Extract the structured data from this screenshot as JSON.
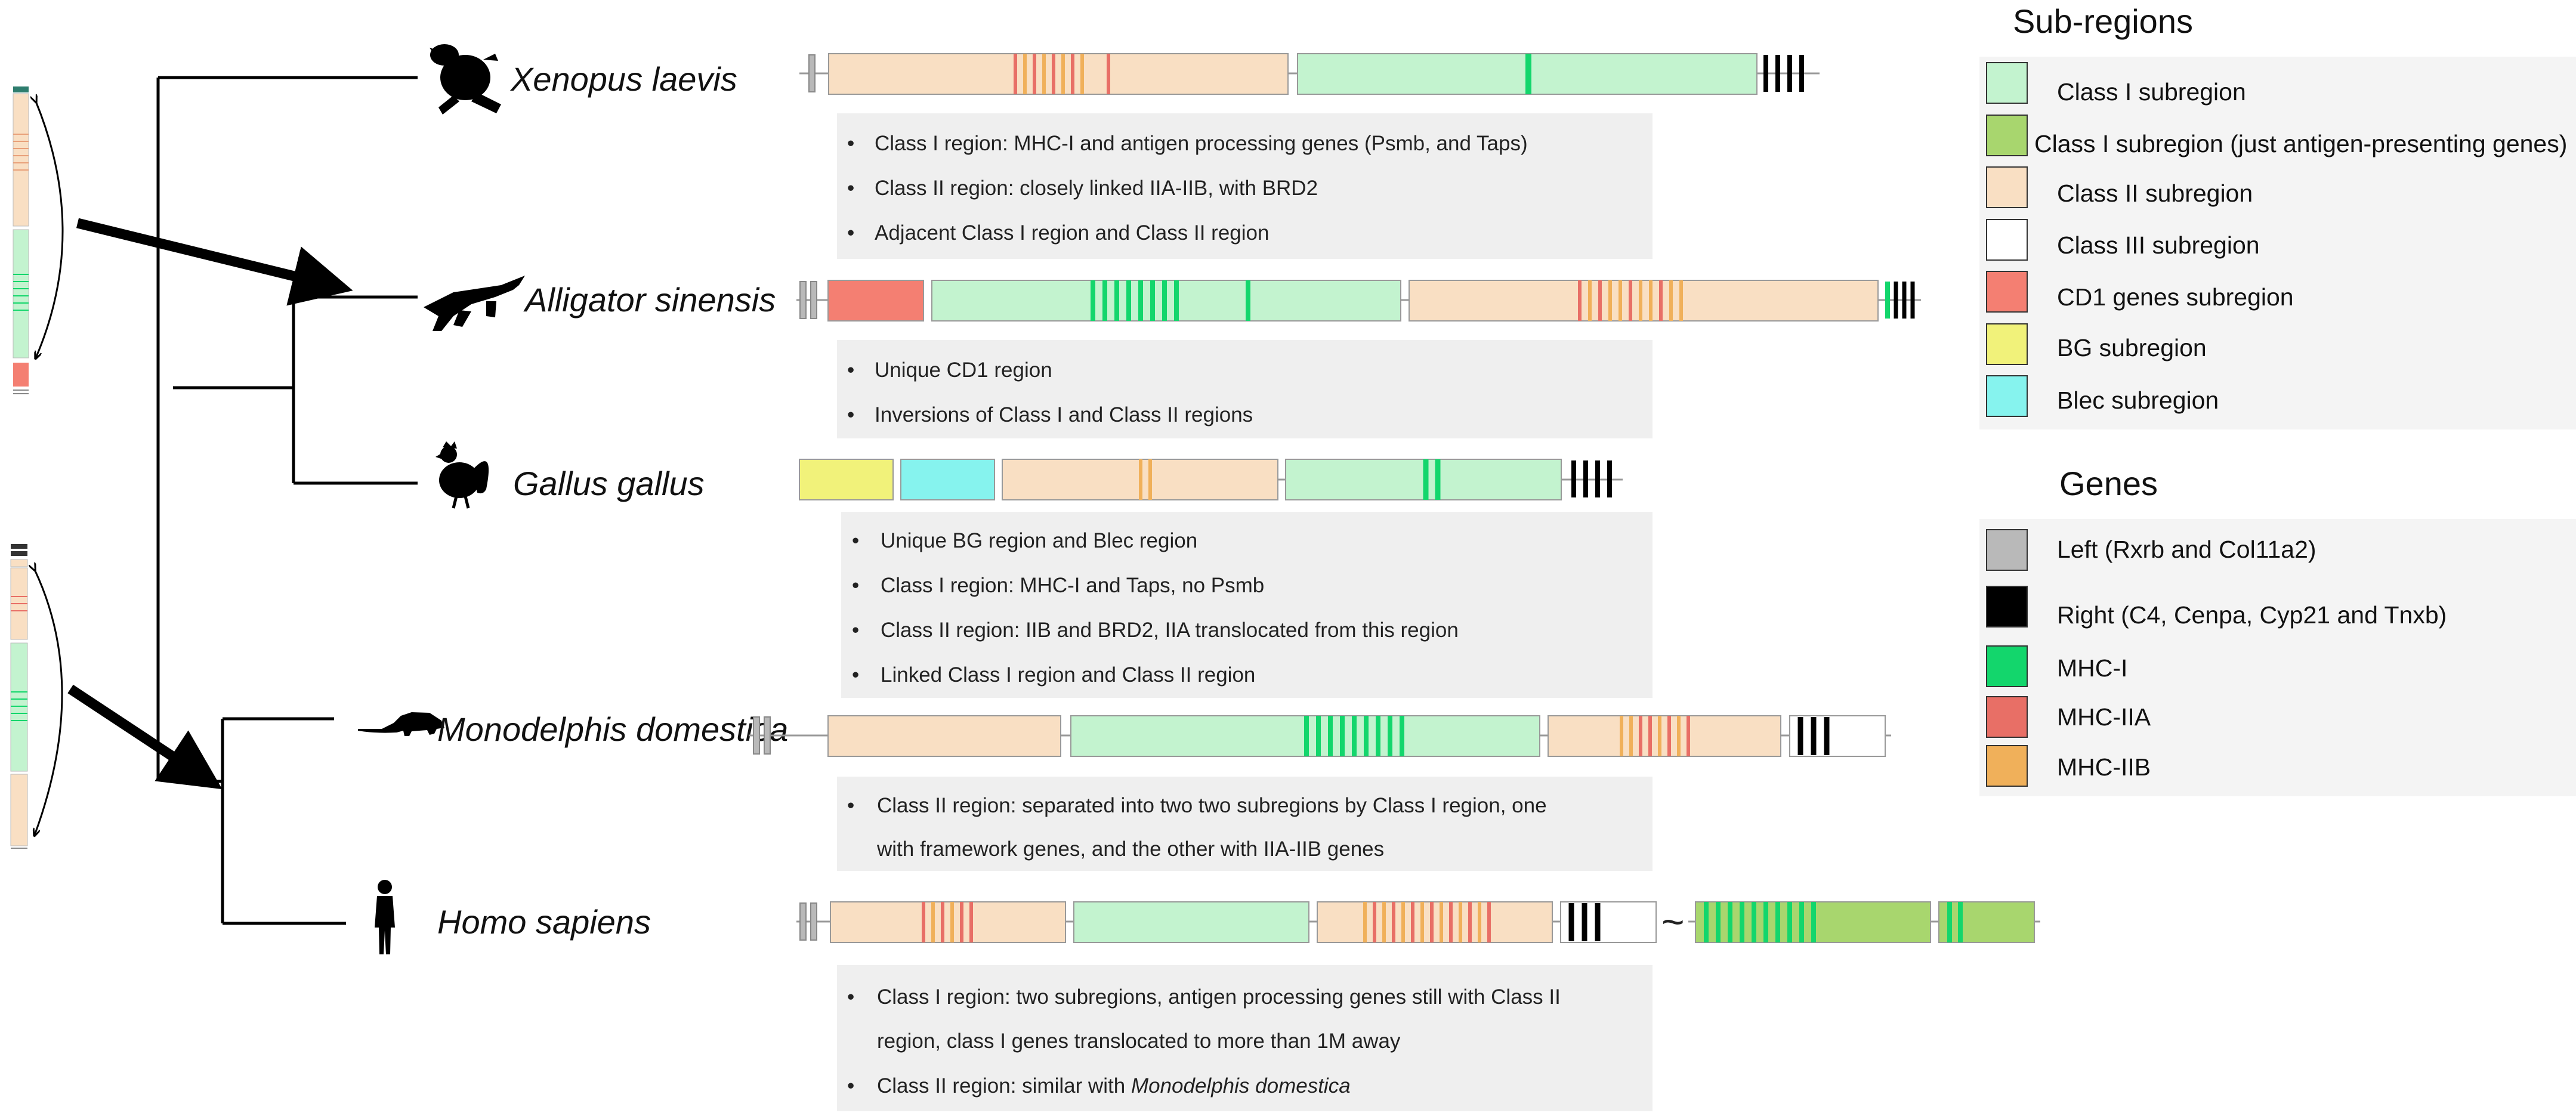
{
  "colors": {
    "class1": "#c3f3cf",
    "class1_ap": "#a8d66e",
    "class2": "#f9dfc3",
    "class3": "#ffffff",
    "cd1": "#f47f72",
    "bg": "#f1f27a",
    "blec": "#86f3ee",
    "left": "#b9b9b9",
    "right": "#000000",
    "mhc1": "#13d66c",
    "mhc2a": "#e86f66",
    "mhc2b": "#f0b05a",
    "note_bg": "#efefef"
  },
  "species": [
    {
      "name": "Xenopus laevis",
      "icon": "frog-silhouette-icon",
      "notes": [
        "Class I region:  MHC-I and antigen processing genes (Psmb, and Taps)",
        "Class II region:  closely linked IIA-IIB,  with BRD2",
        "Adjacent  Class I region and Class II region"
      ]
    },
    {
      "name": "Alligator sinensis",
      "icon": "alligator-silhouette-icon",
      "notes": [
        "Unique CD1 region",
        "Inversions of Class I and Class II regions"
      ]
    },
    {
      "name": "Gallus gallus",
      "icon": "rooster-silhouette-icon",
      "notes": [
        "Unique BG region and Blec region",
        "Class I region: MHC-I  and Taps, no Psmb",
        "Class II region:  IIB and BRD2, IIA translocated from this region",
        "Linked Class I region and Class II region"
      ]
    },
    {
      "name": "Monodelphis domestica",
      "icon": "opossum-silhouette-icon",
      "notes": [
        "Class II region: separated into two two subregions by Class I region, one",
        "with framework genes, and the other with IIA-IIB genes"
      ]
    },
    {
      "name": "Homo sapiens",
      "icon": "human-silhouette-icon",
      "notes": [
        "Class I region:  two subregions, antigen processing genes  still with Class II",
        "region, class I genes translocated to more than 1M away",
        "Class II region: similar with "
      ],
      "note_italic_tail": "Monodelphis domestica"
    }
  ],
  "tilde": "~",
  "legend": {
    "subregions_title": "Sub-regions",
    "subregions": [
      {
        "label": "Class I  subregion",
        "color": "#c3f3cf"
      },
      {
        "label": "Class I  subregion  (just antigen-presenting genes)",
        "color": "#a8d66e"
      },
      {
        "label": "Class II subregion",
        "color": "#f9dfc3"
      },
      {
        "label": "Class III subregion",
        "color": "#ffffff"
      },
      {
        "label": "CD1 genes subregion",
        "color": "#f47f72"
      },
      {
        "label": "BG subregion",
        "color": "#f1f27a"
      },
      {
        "label": "Blec subregion",
        "color": "#86f3ee"
      }
    ],
    "genes_title": "Genes",
    "genes": [
      {
        "label": "Left (Rxrb and Col11a2)",
        "color": "#b9b9b9"
      },
      {
        "label": "Right (C4, Cenpa, Cyp21 and Tnxb)",
        "color": "#000000"
      },
      {
        "label": "MHC-I",
        "color": "#13d66c"
      },
      {
        "label": "MHC-IIA",
        "color": "#e86f66"
      },
      {
        "label": "MHC-IIB",
        "color": "#f0b05a"
      }
    ]
  }
}
